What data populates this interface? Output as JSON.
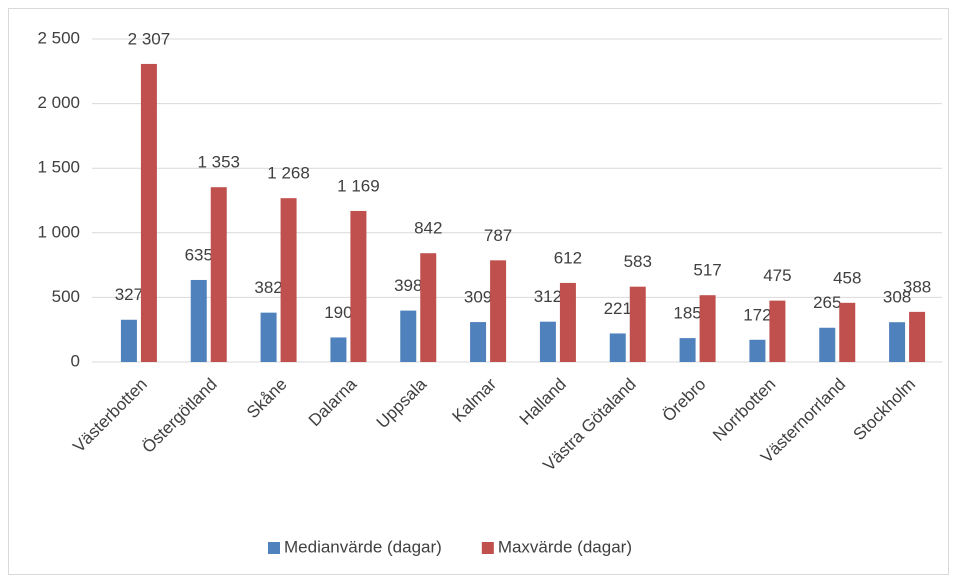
{
  "chart_data": {
    "type": "bar",
    "categories": [
      "Västerbotten",
      "Östergötland",
      "Skåne",
      "Dalarna",
      "Uppsala",
      "Kalmar",
      "Halland",
      "Västra Götaland",
      "Örebro",
      "Norrbotten",
      "Västernorrland",
      "Stockholm"
    ],
    "series": [
      {
        "name": "Medianvärde (dagar)",
        "color": "#4f81bd",
        "values": [
          327,
          635,
          382,
          190,
          398,
          309,
          312,
          221,
          185,
          172,
          265,
          308
        ]
      },
      {
        "name": "Maxvärde (dagar)",
        "color": "#c0504d",
        "values": [
          2307,
          1353,
          1268,
          1169,
          842,
          787,
          612,
          583,
          517,
          475,
          458,
          388
        ],
        "value_labels": [
          "2 307",
          "1 353",
          "1 268",
          "1 169",
          "842",
          "787",
          "612",
          "583",
          "517",
          "475",
          "458",
          "388"
        ]
      }
    ],
    "ylim": [
      0,
      2500
    ],
    "yticks": [
      0,
      500,
      {
        "value": 1000,
        "label": "1 000"
      },
      {
        "value": 1500,
        "label": "1 500"
      },
      {
        "value": 2000,
        "label": "2 000"
      },
      {
        "value": 2500,
        "label": "2 500"
      }
    ],
    "grid": true,
    "legend": "bottom"
  }
}
